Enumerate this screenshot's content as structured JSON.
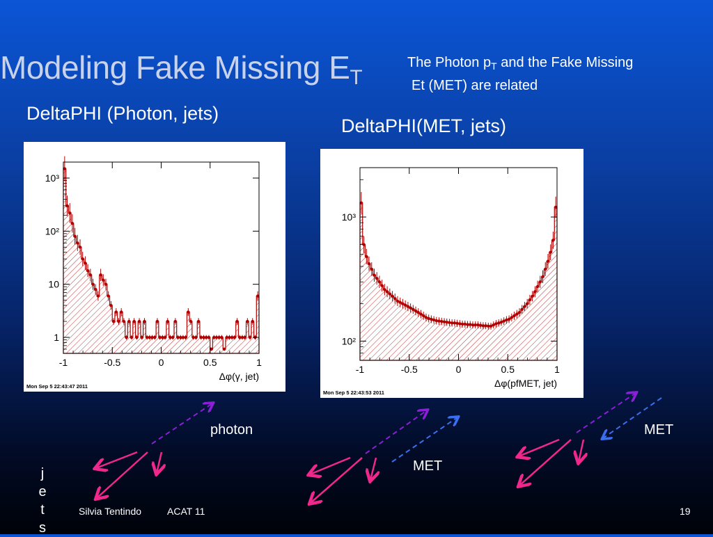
{
  "slide": {
    "title_main": "Modeling Fake Missing E",
    "title_sub": "T",
    "note_line1_pre": "The Photon p",
    "note_line1_sub": "T",
    "note_line1_post": " and the Fake Missing",
    "note_line2": "Et (MET) are related",
    "left_plot_title": "DeltaPHI (Photon, jets)",
    "right_plot_title": "DeltaPHI(MET, jets)",
    "photon_label": "photon",
    "met_label": "MET",
    "jets_label": [
      "j",
      "e",
      "t",
      "s"
    ],
    "footer_author": "Silvia Tentindo",
    "footer_conf": "ACAT 11",
    "page_number": "19"
  },
  "colors": {
    "hist": "#b00000",
    "photon_arrow": "#8a1fd6",
    "met_arrow": "#3a6ff2",
    "jet_arrow": "#f0288c"
  },
  "chart_data": [
    {
      "type": "bar",
      "xlabel": "Δφ(γ, jet)",
      "timestamp": "Mon Sep  5 22:43:47 2011",
      "xlim": [
        -1,
        1
      ],
      "ylim": [
        0.5,
        2000
      ],
      "log_y": true,
      "x_ticks": [
        "-1",
        "-0.5",
        "0",
        "0.5",
        "1"
      ],
      "y_ticks": [
        {
          "v": 1,
          "t": "1"
        },
        {
          "v": 10,
          "t": "10"
        },
        {
          "v": 100,
          "t": "10²"
        },
        {
          "v": 1000,
          "t": "10³"
        }
      ],
      "values": [
        1500,
        300,
        220,
        140,
        80,
        60,
        50,
        30,
        25,
        18,
        15,
        10,
        8,
        6,
        15,
        12,
        10,
        6,
        4,
        2,
        3,
        2,
        3,
        2,
        1,
        2,
        1,
        2,
        1,
        2,
        1,
        2,
        1,
        1,
        1,
        1,
        2,
        1,
        1,
        1,
        2,
        1,
        1,
        2,
        1,
        1,
        1,
        1,
        3,
        2,
        1,
        1,
        2,
        1,
        1,
        1,
        1,
        0.6,
        1,
        1,
        1,
        1,
        0.6,
        1,
        1,
        1,
        1,
        2,
        1,
        1,
        1,
        2,
        1,
        2,
        1,
        6
      ]
    },
    {
      "type": "bar",
      "xlabel": "Δφ(pfMET, jet)",
      "timestamp": "Mon Sep  5 22:43:53 2011",
      "xlim": [
        -1,
        1
      ],
      "ylim": [
        70,
        2500
      ],
      "log_y": true,
      "x_ticks": [
        "-1",
        "-0.5",
        "0",
        "0.5",
        "1"
      ],
      "y_ticks": [
        {
          "v": 100,
          "t": "10²"
        },
        {
          "v": 1000,
          "t": "10³"
        }
      ],
      "values": [
        1300,
        600,
        480,
        420,
        380,
        340,
        320,
        300,
        280,
        260,
        250,
        240,
        230,
        220,
        210,
        205,
        200,
        195,
        190,
        185,
        180,
        175,
        170,
        165,
        160,
        155,
        152,
        150,
        148,
        146,
        145,
        144,
        143,
        142,
        141,
        140,
        140,
        139,
        138,
        137,
        137,
        136,
        136,
        135,
        135,
        135,
        134,
        133,
        133,
        132,
        132,
        135,
        138,
        140,
        142,
        145,
        148,
        150,
        155,
        160,
        165,
        170,
        180,
        190,
        200,
        215,
        230,
        250,
        275,
        300,
        330,
        380,
        440,
        520,
        650,
        1200
      ]
    }
  ]
}
